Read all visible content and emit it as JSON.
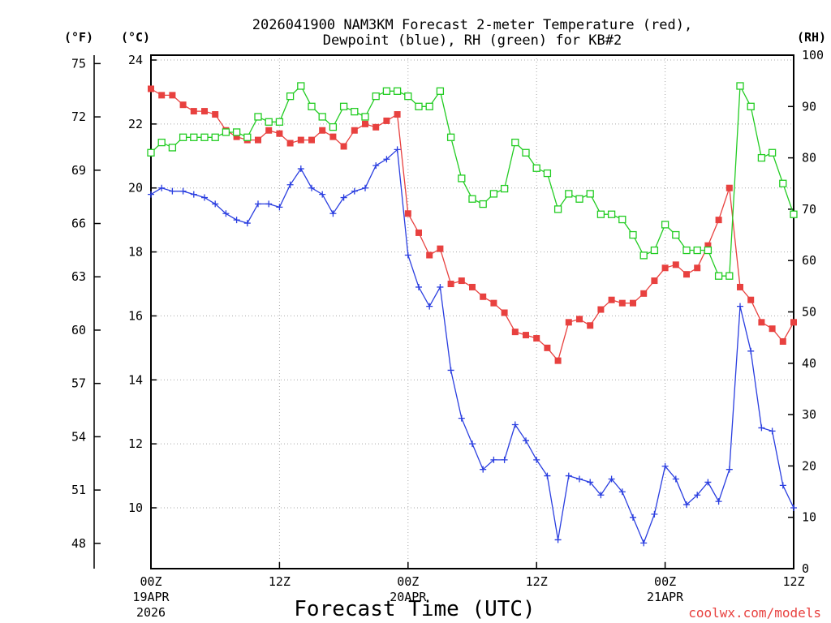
{
  "chart_data": {
    "type": "line",
    "title": "2026041900 NAM3KM Forecast 2-meter Temperature (red),",
    "title_line2": "Dewpoint (blue), RH (green) for KB#2",
    "xlabel": "Forecast Time (UTC)",
    "credit": "coolwx.com/models",
    "units": {
      "fahrenheit": "(°F)",
      "celsius": "(°C)",
      "rh": "(RH)"
    },
    "x_hours_range": [
      0,
      60
    ],
    "ylim_celsius": [
      7.5,
      24.0
    ],
    "ylim_rh": [
      0,
      100
    ],
    "x_ticks": [
      {
        "hour": 0,
        "line1": "00Z",
        "line2": "19APR",
        "line3": "2026"
      },
      {
        "hour": 12,
        "line1": "12Z",
        "line2": "",
        "line3": ""
      },
      {
        "hour": 24,
        "line1": "00Z",
        "line2": "20APR",
        "line3": ""
      },
      {
        "hour": 36,
        "line1": "12Z",
        "line2": "",
        "line3": ""
      },
      {
        "hour": 48,
        "line1": "00Z",
        "line2": "21APR",
        "line3": ""
      },
      {
        "hour": 60,
        "line1": "12Z",
        "line2": "",
        "line3": ""
      }
    ],
    "y_ticks_celsius": [
      "10",
      "12",
      "14",
      "16",
      "18",
      "20",
      "22",
      "24"
    ],
    "y_ticks_fahrenheit": [
      "48",
      "51",
      "54",
      "57",
      "60",
      "63",
      "66",
      "69",
      "72",
      "75"
    ],
    "y_ticks_rh": [
      "0",
      "10",
      "20",
      "30",
      "40",
      "50",
      "60",
      "70",
      "80",
      "90",
      "100"
    ],
    "series": [
      {
        "name": "2-meter Temperature",
        "color": "#e8413f",
        "unit": "celsius",
        "marker": "filled-square",
        "values": [
          23.1,
          22.9,
          22.9,
          22.6,
          22.4,
          22.4,
          22.3,
          21.8,
          21.6,
          21.5,
          21.5,
          21.8,
          21.7,
          21.4,
          21.5,
          21.5,
          21.8,
          21.6,
          21.3,
          21.8,
          22.0,
          21.9,
          22.1,
          22.3,
          19.2,
          18.6,
          17.9,
          18.1,
          17.0,
          17.1,
          16.9,
          16.6,
          16.4,
          16.1,
          15.5,
          15.4,
          15.3,
          15.0,
          14.6,
          15.8,
          15.9,
          15.7,
          16.2,
          16.5,
          16.4,
          16.4,
          16.7,
          17.1,
          17.5,
          17.6,
          17.3,
          17.5,
          18.2,
          19.0,
          20.0,
          16.9,
          16.5,
          15.8,
          15.6,
          15.2,
          15.8
        ]
      },
      {
        "name": "Dewpoint",
        "color": "#2a3ee0",
        "unit": "celsius",
        "marker": "plus",
        "values": [
          19.8,
          20.0,
          19.9,
          19.9,
          19.8,
          19.7,
          19.5,
          19.2,
          19.0,
          18.9,
          19.5,
          19.5,
          19.4,
          20.1,
          20.6,
          20.0,
          19.8,
          19.2,
          19.7,
          19.9,
          20.0,
          20.7,
          20.9,
          21.2,
          17.9,
          16.9,
          16.3,
          16.9,
          14.3,
          12.8,
          12.0,
          11.2,
          11.5,
          11.5,
          12.6,
          12.1,
          11.5,
          11.0,
          9.0,
          11.0,
          10.9,
          10.8,
          10.4,
          10.9,
          10.5,
          9.7,
          8.9,
          9.8,
          11.3,
          10.9,
          10.1,
          10.4,
          10.8,
          10.2,
          11.2,
          16.3,
          14.9,
          12.5,
          12.4,
          10.7,
          10.0
        ]
      },
      {
        "name": "Relative Humidity",
        "color": "#22cc22",
        "unit": "rh",
        "marker": "open-square",
        "values": [
          81,
          83,
          82,
          84,
          84,
          84,
          84,
          85,
          85,
          84,
          88,
          87,
          87,
          92,
          94,
          90,
          88,
          86,
          90,
          89,
          88,
          92,
          93,
          93,
          92,
          90,
          90,
          93,
          84,
          76,
          72,
          71,
          73,
          74,
          83,
          81,
          78,
          77,
          70,
          73,
          72,
          73,
          69,
          69,
          68,
          65,
          61,
          62,
          67,
          65,
          62,
          62,
          62,
          57,
          57,
          94,
          90,
          80,
          81,
          75,
          69
        ]
      }
    ]
  }
}
